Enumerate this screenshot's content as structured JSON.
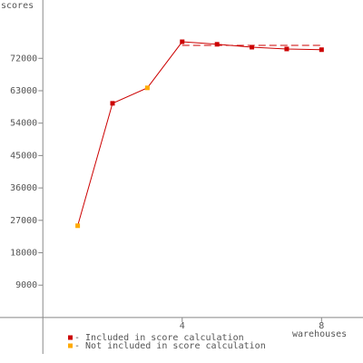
{
  "chart_data": {
    "type": "line",
    "y_label": "scores",
    "x_label": "warehouses",
    "x": [
      1,
      2,
      3,
      4,
      5,
      6,
      7,
      8
    ],
    "values": [
      25500,
      59500,
      63800,
      76600,
      75900,
      75100,
      74600,
      74400
    ],
    "line_color": "#cc0000",
    "point_status": [
      1,
      0,
      1,
      0,
      0,
      0,
      0,
      0
    ],
    "legend": [
      {
        "label": "- Included in score calculation",
        "color": "#cc0000"
      },
      {
        "label": "- Not included in score calculation",
        "color": "#ffaa00"
      }
    ],
    "reference_line": {
      "value": 75600,
      "from": 4,
      "to": 8
    },
    "xlim": [
      -1.23,
      9.19
    ],
    "xticks": [
      4,
      8
    ],
    "ylim": [
      -10100,
      88200
    ],
    "yticks": [
      9000,
      18000,
      27000,
      36000,
      45000,
      54000,
      63000,
      72000
    ]
  }
}
